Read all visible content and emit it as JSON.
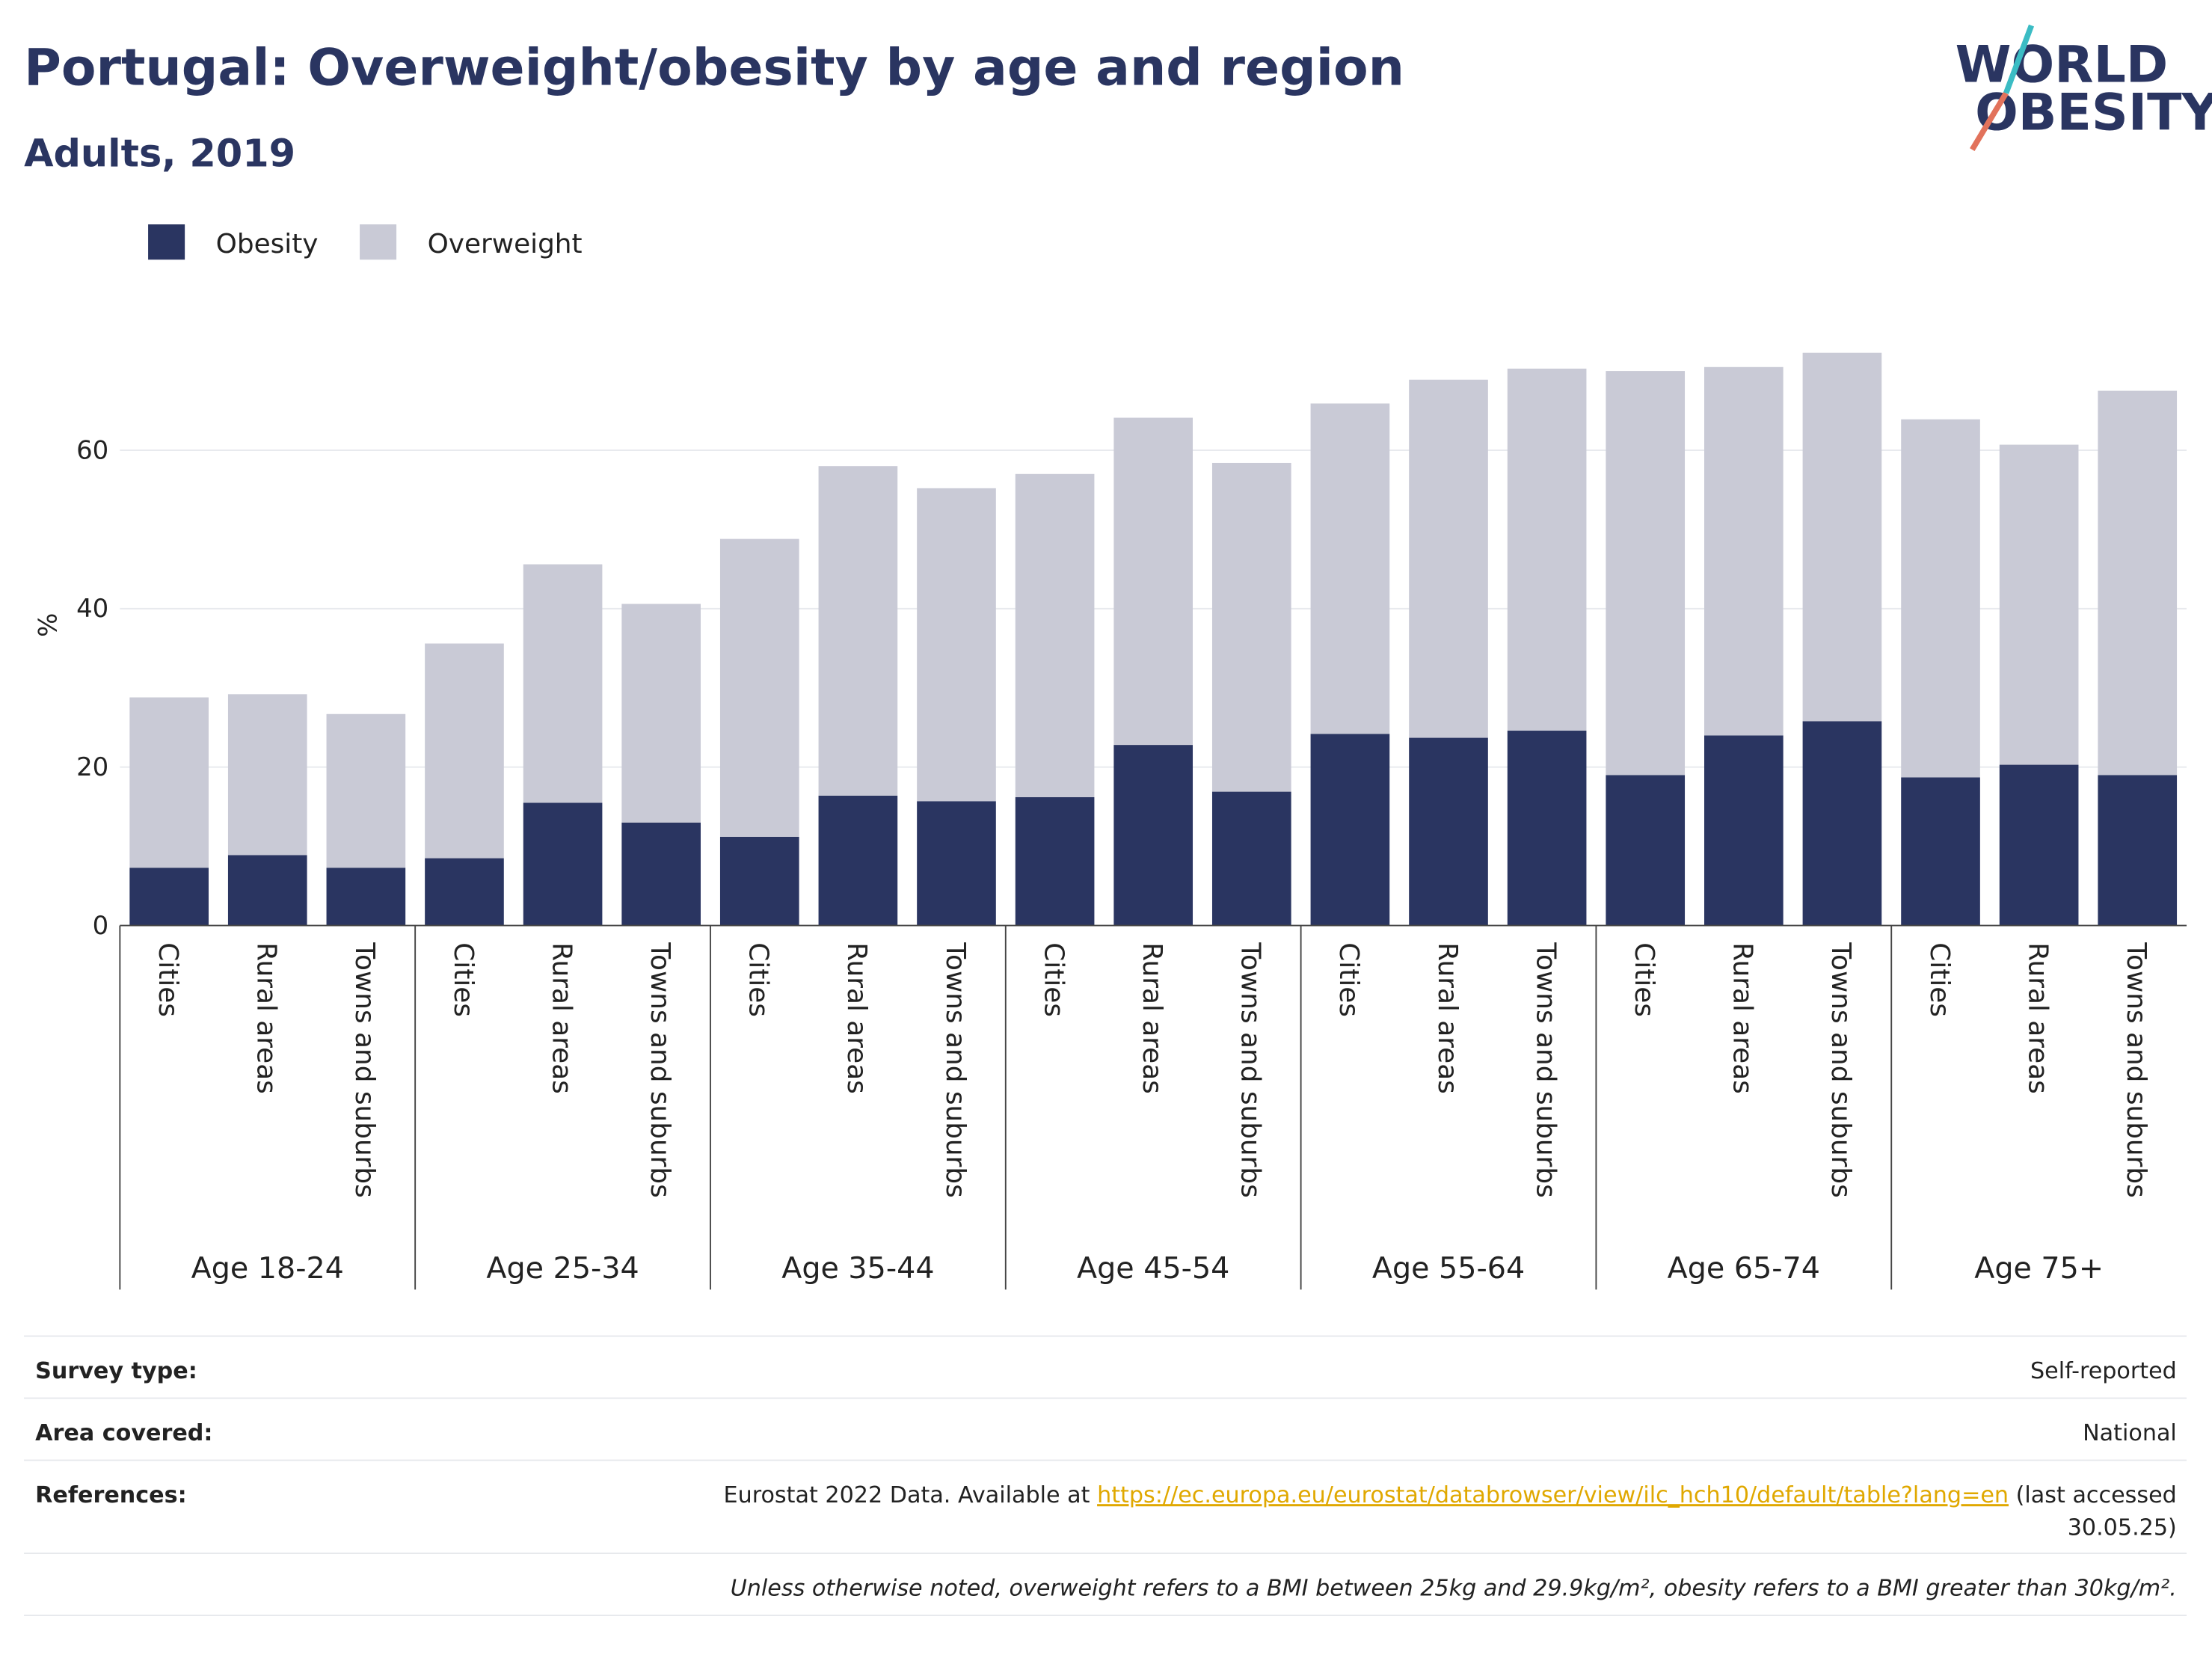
{
  "chart_data": {
    "type": "bar",
    "stacked": true,
    "title": "Portugal: Overweight/obesity by age and region",
    "subtitle": "Adults, 2019",
    "y_label": "%",
    "categories": [
      "Cities",
      "Rural areas",
      "Towns and suburbs",
      "Cities",
      "Rural areas",
      "Towns and suburbs",
      "Cities",
      "Rural areas",
      "Towns and suburbs",
      "Cities",
      "Rural areas",
      "Towns and suburbs",
      "Cities",
      "Rural areas",
      "Towns and suburbs",
      "Cities",
      "Rural areas",
      "Towns and suburbs",
      "Cities",
      "Rural areas",
      "Towns and suburbs"
    ],
    "groups": [
      "Age 18-24",
      "Age 25-34",
      "Age 35-44",
      "Age 45-54",
      "Age 55-64",
      "Age 65-74",
      "Age 75+"
    ],
    "series": [
      {
        "name": "Obesity",
        "color": "#2a3561",
        "values": [
          7.3,
          8.9,
          7.3,
          8.5,
          15.5,
          13.0,
          11.2,
          16.4,
          15.7,
          16.2,
          22.8,
          16.9,
          24.2,
          23.7,
          24.6,
          19.0,
          24.0,
          25.8,
          18.7,
          20.3,
          19.0
        ]
      },
      {
        "name": "Overweight",
        "color": "#c9cad6",
        "values": [
          21.5,
          20.3,
          19.4,
          27.1,
          30.1,
          27.6,
          37.6,
          41.6,
          39.5,
          40.8,
          41.3,
          41.5,
          41.7,
          45.2,
          45.7,
          51.0,
          46.5,
          46.5,
          45.2,
          40.4,
          48.5
        ]
      }
    ],
    "ylim": [
      0,
      78
    ],
    "yticks": [
      0,
      20,
      40,
      60
    ],
    "grid": true,
    "legend": "top-left"
  },
  "logo": {
    "line1": "WORLD",
    "line2": "OBESITY"
  },
  "footer": {
    "rows": [
      {
        "label": "Survey type:",
        "value": "Self-reported"
      },
      {
        "label": "Area covered:",
        "value": "National"
      }
    ],
    "references": {
      "label": "References:",
      "text": "Eurostat 2022 Data. Available at",
      "link": "https://ec.europa.eu/eurostat/databrowser/view/ilc_hch10/default/table?lang=en",
      "suffix": "(last accessed",
      "suffix2": "30.05.25)"
    },
    "note": "Unless otherwise noted, overweight refers to a BMI between 25kg and 29.9kg/m², obesity refers to a BMI greater than 30kg/m²."
  }
}
